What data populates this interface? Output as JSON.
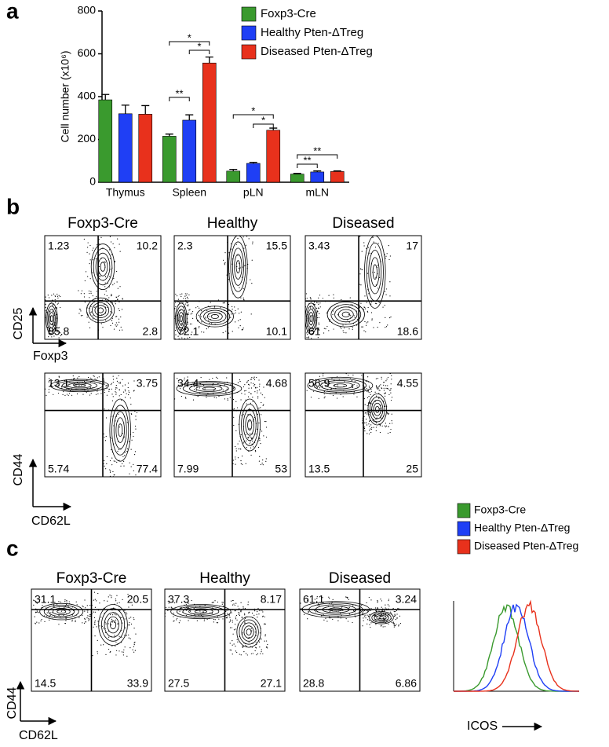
{
  "panel_labels": [
    "a",
    "b",
    "c"
  ],
  "chart_data": {
    "type": "bar",
    "y_label": "Cell number (x10⁶)",
    "categories": [
      "Thymus",
      "Spleen",
      "pLN",
      "mLN"
    ],
    "series": [
      {
        "name": "Foxp3-Cre",
        "color": "#3a9a2e",
        "values": [
          385,
          215,
          52,
          38
        ],
        "error": [
          25,
          10,
          8,
          3
        ]
      },
      {
        "name": "Healthy Pten-ΔTreg",
        "color": "#1f3ff5",
        "values": [
          320,
          290,
          88,
          48
        ],
        "error": [
          40,
          25,
          5,
          5
        ]
      },
      {
        "name": "Diseased Pten-ΔTreg",
        "color": "#e8311c",
        "values": [
          318,
          557,
          243,
          50
        ],
        "error": [
          40,
          28,
          10,
          3
        ]
      }
    ],
    "ylim": [
      0,
      800
    ],
    "yticks": [
      0,
      200,
      400,
      600,
      800
    ],
    "annotations": [
      "*",
      "*",
      "**",
      "*",
      "*",
      "**",
      "**"
    ]
  },
  "panel_b": {
    "columns": [
      "Foxp3-Cre",
      "Healthy",
      "Diseased"
    ],
    "rows": [
      {
        "y_label": "CD25",
        "x_label": "Foxp3",
        "quadrants": [
          [
            1.23,
            10.2,
            85.8,
            2.8
          ],
          [
            2.3,
            15.5,
            72.1,
            10.1
          ],
          [
            3.43,
            17,
            61,
            18.6
          ]
        ]
      },
      {
        "y_label": "CD44",
        "x_label": "CD62L",
        "quadrants": [
          [
            13.1,
            3.75,
            5.74,
            77.4
          ],
          [
            34.4,
            4.68,
            7.99,
            53
          ],
          [
            56.9,
            4.55,
            13.5,
            25
          ]
        ]
      }
    ]
  },
  "panel_c": {
    "columns": [
      "Foxp3-Cre",
      "Healthy",
      "Diseased"
    ],
    "y_label": "CD44",
    "x_label": "CD62L",
    "quadrants": [
      [
        31.1,
        20.5,
        14.5,
        33.9
      ],
      [
        37.3,
        8.17,
        27.5,
        27.1
      ],
      [
        61.1,
        3.24,
        28.8,
        6.86
      ]
    ],
    "histogram": {
      "x_label": "ICOS",
      "legend": [
        {
          "name": "Foxp3-Cre",
          "color": "#3a9a2e"
        },
        {
          "name": "Healthy Pten-ΔTreg",
          "color": "#1f3ff5"
        },
        {
          "name": "Diseased Pten-ΔTreg",
          "color": "#e8311c"
        }
      ]
    }
  }
}
